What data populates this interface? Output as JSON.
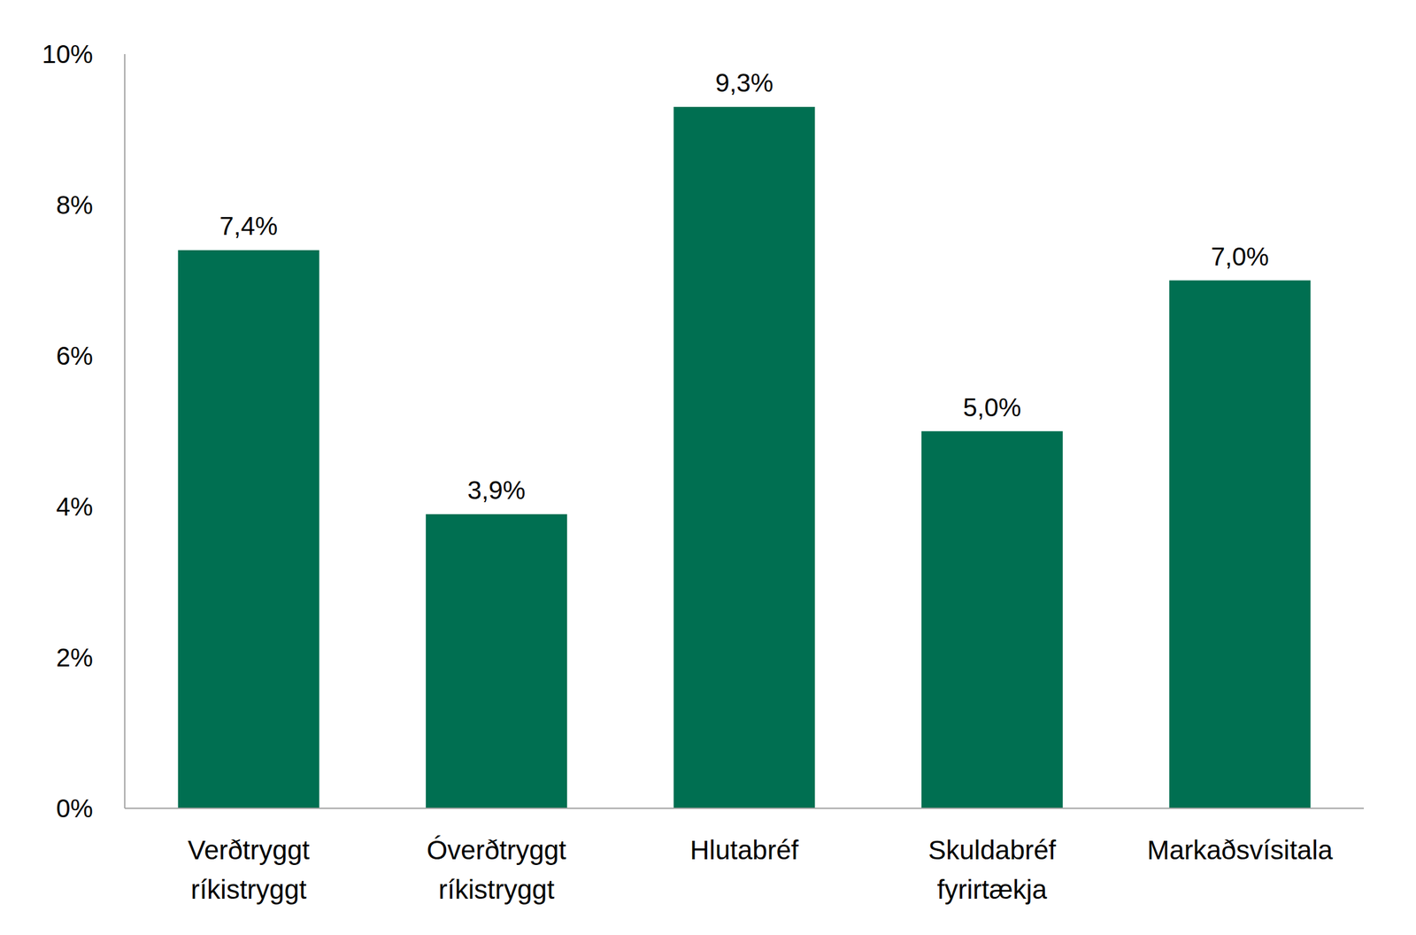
{
  "chart_data": {
    "type": "bar",
    "categories": [
      "Verðtryggt ríkistryggt",
      "Óverðtryggt ríkistryggt",
      "Hlutabréf",
      "Skuldabréf fyrirtækja",
      "Markaðsvísitala"
    ],
    "values": [
      7.4,
      3.9,
      9.3,
      5.0,
      7.0
    ],
    "value_labels": [
      "7,4%",
      "3,9%",
      "9,3%",
      "5,0%",
      "7,0%"
    ],
    "color": "#006f51",
    "ylim": [
      0,
      10
    ],
    "yticks": [
      {
        "value": 0,
        "label": "0%"
      },
      {
        "value": 2,
        "label": "2%"
      },
      {
        "value": 4,
        "label": "4%"
      },
      {
        "value": 6,
        "label": "6%"
      },
      {
        "value": 8,
        "label": "8%"
      },
      {
        "value": 10,
        "label": "10%"
      }
    ],
    "grid": false,
    "data_labels": true
  }
}
